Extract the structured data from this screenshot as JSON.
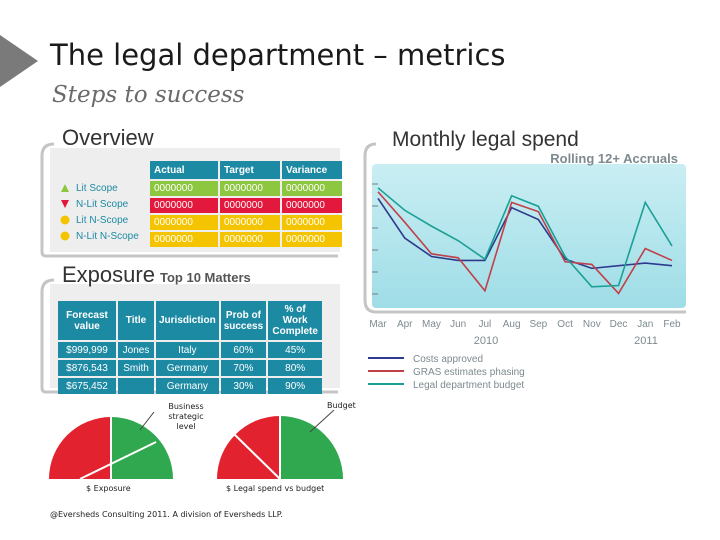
{
  "slide": {
    "title": "The legal department – metrics",
    "subtitle": "Steps to success",
    "footer": "@Eversheds Consulting 2011. A division of Eversheds LLP."
  },
  "overview": {
    "heading": "Overview",
    "columns": [
      "Actual",
      "Target",
      "Variance"
    ],
    "rows": [
      {
        "label": "Lit Scope",
        "marker": "triangle-up",
        "color": "#8dc63f",
        "values": [
          "0000000",
          "0000000",
          "0000000"
        ]
      },
      {
        "label": "N-Lit Scope",
        "marker": "triangle-down",
        "color": "#e2183d",
        "values": [
          "0000000",
          "0000000",
          "0000000"
        ]
      },
      {
        "label": "Lit N-Scope",
        "marker": "circle",
        "color": "#f5c400",
        "values": [
          "0000000",
          "0000000",
          "0000000"
        ]
      },
      {
        "label": "N-Lit N-Scope",
        "marker": "circle",
        "color": "#f5c400",
        "values": [
          "0000000",
          "0000000",
          "0000000"
        ]
      }
    ]
  },
  "exposure": {
    "heading": "Exposure",
    "subheading": "Top 10 Matters",
    "columns": [
      "Forecast value",
      "Title",
      "Jurisdiction",
      "Prob of success",
      "% of Work Complete"
    ],
    "rows": [
      [
        "$999,999",
        "Jones",
        "Italy",
        "60%",
        "45%"
      ],
      [
        "$876,543",
        "Smith",
        "Germany",
        "70%",
        "80%"
      ],
      [
        "$675,452",
        "",
        "Germany",
        "30%",
        "90%"
      ]
    ]
  },
  "gauges": {
    "left_top_label": "Business strategic level",
    "left_bottom_label": "$ Exposure",
    "right_top_label": "Budget",
    "right_bottom_label": "$ Legal spend vs budget"
  },
  "chart_data": {
    "type": "line",
    "title": "Monthly legal spend",
    "subtitle": "Rolling 12+ Accruals",
    "categories": [
      "Mar",
      "Apr",
      "May",
      "Jun",
      "Jul",
      "Aug",
      "Sep",
      "Oct",
      "Nov",
      "Dec",
      "Jan",
      "Feb"
    ],
    "year_labels": [
      "2010",
      "2011"
    ],
    "ylim": [
      0,
      100
    ],
    "series": [
      {
        "name": "Costs approved",
        "color": "#2e3a8c",
        "values": [
          80,
          50,
          36,
          33,
          33,
          73,
          64,
          34,
          27,
          29,
          31,
          29
        ]
      },
      {
        "name": "GRAS estimates phasing",
        "color": "#c0404a",
        "values": [
          85,
          62,
          38,
          35,
          10,
          77,
          70,
          32,
          30,
          8,
          42,
          33
        ]
      },
      {
        "name": "Legal department budget",
        "color": "#1aa095",
        "values": [
          88,
          71,
          59,
          48,
          34,
          82,
          74,
          36,
          13,
          14,
          77,
          44
        ]
      }
    ]
  }
}
